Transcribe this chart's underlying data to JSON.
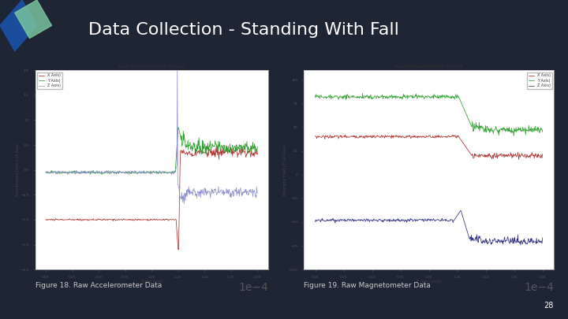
{
  "bg_color": "#1e2535",
  "title": "Data Collection - Standing With Fall",
  "title_color": "#ffffff",
  "title_fontsize": 16,
  "accent_blue": "#1a4e9c",
  "accent_green": "#7ecba1",
  "fig1_title": "Raw Accelerometer Sensor",
  "fig2_title": "Raw Magnetometer Sensor",
  "fig1_xlabel": "Time (ms)",
  "fig2_xlabel": "T (ms) (ms)",
  "fig1_ylabel": "Acceleration (m/s²) all Axes",
  "fig2_ylabel": "Magnetic Field (T) all Axes",
  "caption1": "Figure 18. Raw Accelerometer Data",
  "caption2": "Figure 19. Raw Magnetometer Data",
  "page_num": "28",
  "chart_bg": "#ffffff",
  "line_colors_accel": [
    "#b03030",
    "#30a030",
    "#9090d0"
  ],
  "line_colors_mag": [
    "#b03030",
    "#30a030",
    "#303080"
  ],
  "legend_labels_accel": [
    "X Axis)",
    "Y Axis)",
    "Z Axis)"
  ],
  "legend_labels_mag": [
    "X Axis)",
    "Y Axis)",
    "Z Axis)"
  ]
}
